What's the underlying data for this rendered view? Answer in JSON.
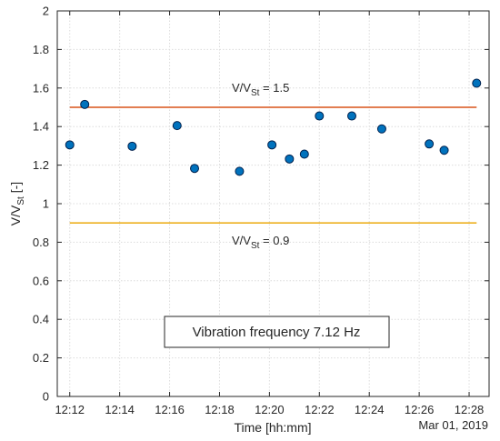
{
  "chart_data": {
    "type": "scatter",
    "title": "",
    "xlabel": "Time [hh:mm]",
    "ylabel_main": "V/V",
    "ylabel_sub": "St",
    "ylabel_suffix": " [-]",
    "date_label": "Mar 01, 2019",
    "grid": true,
    "x_minutes": [
      12.0,
      12.6,
      14.5,
      16.3,
      17.0,
      18.8,
      20.1,
      20.8,
      21.4,
      22.0,
      23.3,
      24.5,
      26.4,
      27.0,
      28.3
    ],
    "x_times": [
      "12:12:00",
      "12:12:36",
      "12:14:30",
      "12:16:18",
      "12:17:00",
      "12:18:48",
      "12:20:06",
      "12:20:48",
      "12:21:24",
      "12:22:00",
      "12:23:18",
      "12:24:30",
      "12:26:24",
      "12:27:00",
      "12:28:18"
    ],
    "y": [
      1.305,
      1.515,
      1.298,
      1.405,
      1.183,
      1.168,
      1.305,
      1.232,
      1.257,
      1.455,
      1.455,
      1.388,
      1.31,
      1.277,
      1.625
    ],
    "xlim_minutes": [
      11.5,
      28.8
    ],
    "ylim": [
      0,
      2
    ],
    "x_ticks_minutes": [
      12,
      14,
      16,
      18,
      20,
      22,
      24,
      26,
      28
    ],
    "x_tick_labels": [
      "12:12",
      "12:14",
      "12:16",
      "12:18",
      "12:20",
      "12:22",
      "12:24",
      "12:26",
      "12:28"
    ],
    "y_ticks": [
      0,
      0.2,
      0.4,
      0.6,
      0.8,
      1,
      1.2,
      1.4,
      1.6,
      1.8,
      2
    ],
    "y_tick_labels": [
      "0",
      "0.2",
      "0.4",
      "0.6",
      "0.8",
      "1",
      "1.2",
      "1.4",
      "1.6",
      "1.8",
      "2"
    ],
    "hlines": [
      {
        "y": 1.5,
        "color": "#d95319",
        "label_main": "V/V",
        "label_sub": "St",
        "label_suffix": " = 1.5",
        "label_pos": "above"
      },
      {
        "y": 0.9,
        "color": "#edb120",
        "label_main": "V/V",
        "label_sub": "St",
        "label_suffix": " = 0.9",
        "label_pos": "below"
      }
    ],
    "hline_range_minutes": [
      12.0,
      28.3
    ],
    "annotation": "Vibration frequency 7.12 Hz",
    "marker_color": "#0072bd",
    "marker_edge": "#00204d"
  }
}
